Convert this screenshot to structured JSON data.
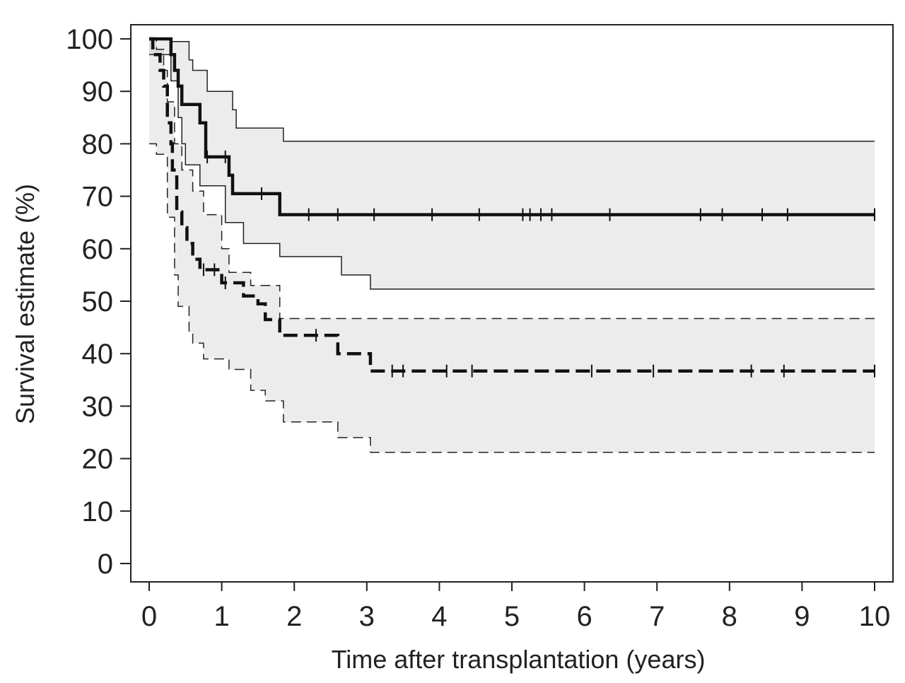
{
  "chart_data": {
    "type": "line",
    "subtype": "kaplan-meier step curves with confidence bands",
    "title": "",
    "xlabel": "Time after transplantation (years)",
    "ylabel": "Survival estimate (%)",
    "xlim": [
      0,
      10
    ],
    "ylim": [
      0,
      100
    ],
    "x_ticks": [
      "0",
      "1",
      "2",
      "3",
      "4",
      "5",
      "6",
      "7",
      "8",
      "9",
      "10"
    ],
    "y_ticks": [
      "0",
      "10",
      "20",
      "30",
      "40",
      "50",
      "60",
      "70",
      "80",
      "90",
      "100"
    ],
    "grid": false,
    "legend": "none",
    "series": [
      {
        "name": "solid curve",
        "style": "solid",
        "steps": [
          [
            0,
            100
          ],
          [
            0.3,
            97
          ],
          [
            0.35,
            94
          ],
          [
            0.4,
            91
          ],
          [
            0.45,
            87.5
          ],
          [
            0.55,
            87.5
          ],
          [
            0.7,
            84
          ],
          [
            0.78,
            77.5
          ],
          [
            1.1,
            74
          ],
          [
            1.15,
            70.5
          ],
          [
            1.8,
            66.5
          ],
          [
            10,
            66.5
          ]
        ],
        "censored_x": [
          0.8,
          1.05,
          1.55,
          2.2,
          2.6,
          3.1,
          3.9,
          4.55,
          5.15,
          5.25,
          5.4,
          5.55,
          6.35,
          7.6,
          7.9,
          8.45,
          8.8,
          10
        ],
        "ci_upper": [
          [
            0,
            100
          ],
          [
            0.3,
            99.5
          ],
          [
            0.55,
            96
          ],
          [
            0.6,
            94
          ],
          [
            0.8,
            90
          ],
          [
            1.15,
            86.5
          ],
          [
            1.2,
            83
          ],
          [
            1.85,
            80.5
          ],
          [
            10,
            80.5
          ]
        ],
        "ci_lower": [
          [
            0,
            97
          ],
          [
            0.3,
            92
          ],
          [
            0.4,
            85
          ],
          [
            0.45,
            80
          ],
          [
            0.5,
            76
          ],
          [
            0.7,
            72
          ],
          [
            1.05,
            65
          ],
          [
            1.3,
            61
          ],
          [
            1.8,
            58.5
          ],
          [
            2.6,
            58.5
          ],
          [
            2.65,
            55
          ],
          [
            3.05,
            52.3
          ],
          [
            10,
            52.3
          ]
        ]
      },
      {
        "name": "dashed curve",
        "style": "dashed",
        "steps": [
          [
            0,
            100
          ],
          [
            0.05,
            97
          ],
          [
            0.15,
            94
          ],
          [
            0.2,
            91
          ],
          [
            0.25,
            84
          ],
          [
            0.3,
            80
          ],
          [
            0.32,
            75
          ],
          [
            0.38,
            67
          ],
          [
            0.45,
            64
          ],
          [
            0.52,
            61
          ],
          [
            0.6,
            58
          ],
          [
            0.7,
            56
          ],
          [
            1.0,
            53.5
          ],
          [
            1.3,
            51
          ],
          [
            1.5,
            49.5
          ],
          [
            1.6,
            46.5
          ],
          [
            1.8,
            43.5
          ],
          [
            2.6,
            40
          ],
          [
            3.05,
            36.7
          ],
          [
            10,
            36.7
          ]
        ],
        "censored_x": [
          0.75,
          0.9,
          1.05,
          2.3,
          3.35,
          3.5,
          4.1,
          4.45,
          6.1,
          6.95,
          8.3,
          8.75,
          10
        ],
        "ci_upper": [
          [
            0,
            100
          ],
          [
            0.1,
            98
          ],
          [
            0.2,
            94
          ],
          [
            0.25,
            88
          ],
          [
            0.35,
            80
          ],
          [
            0.45,
            75
          ],
          [
            0.6,
            71
          ],
          [
            0.75,
            66.5
          ],
          [
            1.0,
            60
          ],
          [
            1.1,
            55.5
          ],
          [
            1.4,
            53
          ],
          [
            1.8,
            46.7
          ],
          [
            10,
            46.7
          ]
        ],
        "ci_lower": [
          [
            0,
            80
          ],
          [
            0.1,
            78
          ],
          [
            0.25,
            66
          ],
          [
            0.35,
            55
          ],
          [
            0.4,
            49
          ],
          [
            0.55,
            44
          ],
          [
            0.6,
            42
          ],
          [
            0.75,
            39
          ],
          [
            1.1,
            37
          ],
          [
            1.4,
            33
          ],
          [
            1.6,
            31
          ],
          [
            1.85,
            27
          ],
          [
            2.6,
            24
          ],
          [
            3.05,
            21.2
          ],
          [
            10,
            21.2
          ]
        ]
      }
    ]
  }
}
